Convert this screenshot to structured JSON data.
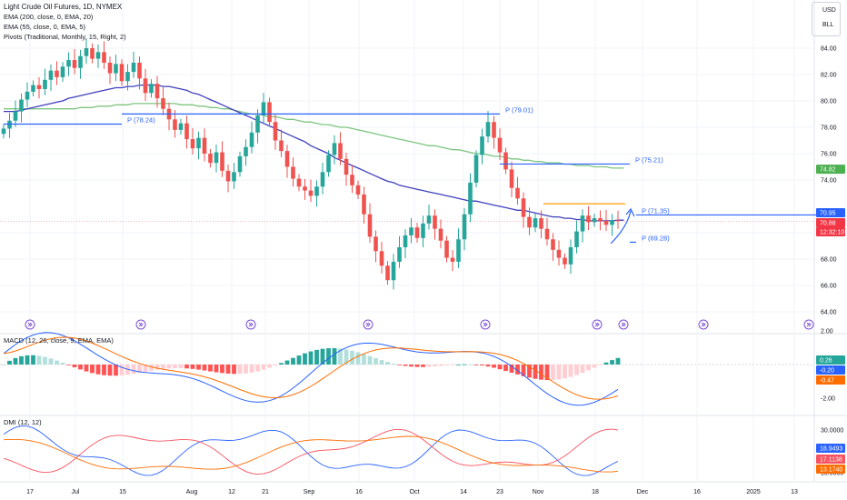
{
  "header": {
    "title": "Light Crude Oil Futures, 1D, NYMEX",
    "indicators": [
      "EMA (200, close, 0, EMA, 20)",
      "EMA (55, close, 0, EMA, 5)",
      "Pivots (Traditional, Monthly, 15, Right, 2)"
    ],
    "currency": "USD",
    "unit": "BLL"
  },
  "price_axis": {
    "ticks": [
      "84.00",
      "82.00",
      "80.00",
      "78.00",
      "76.00",
      "74.00",
      "70.00",
      "68.00",
      "66.00",
      "64.00"
    ]
  },
  "price_tags": [
    {
      "label": "74.82",
      "color": "#4caf50",
      "value": 74.82
    },
    {
      "label": "70.95",
      "color": "#2962ff",
      "value": 70.95
    },
    {
      "label": "70.88",
      "color": "#f23645",
      "value": 70.88
    },
    {
      "label": "12:32:10",
      "color": "#f23645",
      "value": 70.45
    }
  ],
  "time_axis": {
    "ticks": [
      "17",
      "Jul",
      "15",
      "Aug",
      "12",
      "21",
      "Sep",
      "16",
      "Oct",
      "14",
      "23",
      "Nov",
      "18",
      "Dec",
      "16",
      "2025",
      "13"
    ]
  },
  "pivots": [
    {
      "label": "P (78.24)",
      "value": 78.24,
      "start": 0,
      "end": 20
    },
    {
      "label": "P (79.01)",
      "value": 79.01,
      "start": 20,
      "end": 84
    },
    {
      "label": "P (75.21)",
      "value": 75.21,
      "start": 84,
      "end": 106
    },
    {
      "label": "P (69.28)",
      "value": 69.28,
      "start": 106,
      "end": 142
    },
    {
      "label": "P (71.35)",
      "value": 71.35,
      "start": 142,
      "end": 160
    }
  ],
  "macd_panel": {
    "label": "MACD (12, 26, close, 9, EMA, EMA)",
    "ticks": [
      "2.00",
      "-2.00"
    ],
    "tags": [
      {
        "label": "0.26",
        "color": "#26a69a",
        "value": 0.26
      },
      {
        "label": "-0.20",
        "color": "#2962ff",
        "value": -0.2
      },
      {
        "label": "-0.47",
        "color": "#ff6d00",
        "value": -0.47
      }
    ]
  },
  "dmi_panel": {
    "label": "DMI (12, 12)",
    "ticks": [
      "30.0000",
      "10.0000"
    ],
    "tags": [
      {
        "label": "18.9493",
        "color": "#2962ff",
        "value": 18.9493
      },
      {
        "label": "17.1138",
        "color": "#f7525f",
        "value": 17.1138
      },
      {
        "label": "13.1740",
        "color": "#ff6d00",
        "value": 13.174
      }
    ]
  },
  "chart_data": {
    "type": "candlestick",
    "title": "Light Crude Oil Futures, 1D, NYMEX",
    "ylim": [
      64,
      86
    ],
    "series_ema200": [
      79.4,
      79.4,
      79.4,
      79.4,
      79.4,
      79.4,
      79.4,
      79.4,
      79.4,
      79.4,
      79.4,
      79.4,
      79.4,
      79.5,
      79.5,
      79.5,
      79.6,
      79.6,
      79.6,
      79.7,
      79.7,
      79.7,
      79.8,
      79.8,
      79.8,
      79.8,
      79.8,
      79.8,
      79.8,
      79.8,
      79.7,
      79.7,
      79.7,
      79.6,
      79.6,
      79.5,
      79.5,
      79.4,
      79.4,
      79.3,
      79.2,
      79.1,
      79.0,
      79.0,
      78.9,
      78.8,
      78.8,
      78.7,
      78.6,
      78.6,
      78.5,
      78.4,
      78.4,
      78.3,
      78.2,
      78.2,
      78.1,
      78.0,
      78.0,
      77.9,
      77.8,
      77.7,
      77.6,
      77.5,
      77.4,
      77.3,
      77.2,
      77.1,
      77.0,
      76.9,
      76.8,
      76.7,
      76.6,
      76.6,
      76.5,
      76.4,
      76.3,
      76.3,
      76.2,
      76.1,
      76.0,
      76.0,
      75.9,
      75.8,
      75.8,
      75.7,
      75.6,
      75.6,
      75.5,
      75.5,
      75.4,
      75.4,
      75.3,
      75.3,
      75.3,
      75.2,
      75.2,
      75.1,
      75.1,
      75.1,
      75.0,
      75.0,
      75.0,
      74.9,
      74.9,
      74.9
    ],
    "series_ema55": [
      79.2,
      79.2,
      79.2,
      79.3,
      79.4,
      79.5,
      79.6,
      79.7,
      79.8,
      79.9,
      80.0,
      80.2,
      80.3,
      80.4,
      80.5,
      80.6,
      80.7,
      80.8,
      80.9,
      81.0,
      81.0,
      81.1,
      81.1,
      81.2,
      81.2,
      81.2,
      81.2,
      81.1,
      81.1,
      81.0,
      80.9,
      80.8,
      80.6,
      80.5,
      80.3,
      80.1,
      79.9,
      79.7,
      79.5,
      79.3,
      79.1,
      78.9,
      78.7,
      78.5,
      78.3,
      78.1,
      77.9,
      77.7,
      77.5,
      77.3,
      77.1,
      76.9,
      76.6,
      76.4,
      76.2,
      76.0,
      75.7,
      75.5,
      75.3,
      75.1,
      74.9,
      74.7,
      74.5,
      74.3,
      74.1,
      73.9,
      73.8,
      73.6,
      73.5,
      73.4,
      73.3,
      73.2,
      73.1,
      73.0,
      72.9,
      72.8,
      72.7,
      72.6,
      72.5,
      72.4,
      72.4,
      72.3,
      72.2,
      72.1,
      72.0,
      71.9,
      71.8,
      71.7,
      71.7,
      71.6,
      71.5,
      71.4,
      71.3,
      71.2,
      71.2,
      71.1,
      71.1,
      71.0,
      71.0,
      70.9,
      70.9,
      70.9,
      70.9,
      70.9,
      70.95,
      70.95
    ],
    "candles_close": [
      77.9,
      78.5,
      79.2,
      80.1,
      80.7,
      81.2,
      80.9,
      81.6,
      82.3,
      81.8,
      82.6,
      83.1,
      82.5,
      83.4,
      84.0,
      83.2,
      83.7,
      82.9,
      82.1,
      82.8,
      81.5,
      82.2,
      82.9,
      81.7,
      80.6,
      81.3,
      80.2,
      79.4,
      78.6,
      77.8,
      78.3,
      77.1,
      76.4,
      77.2,
      76.0,
      75.3,
      76.1,
      74.7,
      73.9,
      74.6,
      75.8,
      76.5,
      77.6,
      78.9,
      79.9,
      78.4,
      77.0,
      76.2,
      75.0,
      74.1,
      73.5,
      73.2,
      72.8,
      73.5,
      74.6,
      75.9,
      76.8,
      75.6,
      74.4,
      73.6,
      72.9,
      71.4,
      69.7,
      68.6,
      67.5,
      66.4,
      67.8,
      68.9,
      69.8,
      70.4,
      69.6,
      70.7,
      71.3,
      70.3,
      69.4,
      68.1,
      67.8,
      69.5,
      71.4,
      73.8,
      75.9,
      77.3,
      78.4,
      77.2,
      76.1,
      74.8,
      73.4,
      72.6,
      71.2,
      70.4,
      71.1,
      70.3,
      69.5,
      68.7,
      68.1,
      67.6,
      68.9,
      70.1,
      71.3,
      70.8,
      71.1,
      70.9,
      70.6,
      70.95,
      70.88
    ]
  }
}
